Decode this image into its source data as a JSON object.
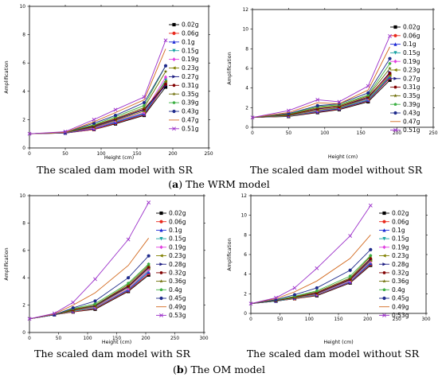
{
  "chart_data": [
    {
      "type": "line",
      "panel": "WRM with SR",
      "caption": "The scaled dam model with SR",
      "xlabel": "Height (cm)",
      "ylabel": "Amplification",
      "xlim": [
        0,
        250
      ],
      "ylim": [
        0,
        10
      ],
      "xticks": [
        0,
        50,
        100,
        150,
        200,
        250
      ],
      "yticks": [
        0,
        2,
        4,
        6,
        8,
        10
      ],
      "x": [
        0,
        50,
        90,
        120,
        160,
        190
      ],
      "series": [
        {
          "name": "0.02g",
          "color": "#000000",
          "marker": "square",
          "values": [
            1,
            1.05,
            1.3,
            1.7,
            2.3,
            4.3
          ]
        },
        {
          "name": "0.06g",
          "color": "#e8291c",
          "marker": "circle",
          "values": [
            1,
            1.05,
            1.3,
            1.75,
            2.35,
            4.5
          ]
        },
        {
          "name": "0.1g",
          "color": "#1f2bd6",
          "marker": "triangle",
          "values": [
            1,
            1.05,
            1.35,
            1.8,
            2.4,
            4.6
          ]
        },
        {
          "name": "0.15g",
          "color": "#1aa3a3",
          "marker": "tri-down",
          "values": [
            1,
            1.08,
            1.4,
            1.85,
            2.45,
            4.8
          ]
        },
        {
          "name": "0.19g",
          "color": "#e040e0",
          "marker": "diamond",
          "values": [
            1,
            1.08,
            1.4,
            1.9,
            2.5,
            5.0
          ]
        },
        {
          "name": "0.23g",
          "color": "#808000",
          "marker": "tri-left",
          "values": [
            1,
            1.08,
            1.45,
            1.95,
            2.6,
            4.7
          ]
        },
        {
          "name": "0.27g",
          "color": "#1a1a80",
          "marker": "tri-right",
          "values": [
            1,
            1.1,
            1.5,
            2.0,
            2.7,
            4.4
          ]
        },
        {
          "name": "0.31g",
          "color": "#800000",
          "marker": "hexagon",
          "values": [
            1,
            1.1,
            1.55,
            2.05,
            2.75,
            4.5
          ]
        },
        {
          "name": "0.35g",
          "color": "#6a6a00",
          "marker": "star",
          "values": [
            1,
            1.1,
            1.6,
            2.1,
            2.85,
            5.4
          ]
        },
        {
          "name": "0.39g",
          "color": "#3cb043",
          "marker": "pentagon",
          "values": [
            1,
            1.1,
            1.65,
            2.2,
            3.0,
            5.8
          ]
        },
        {
          "name": "0.43g",
          "color": "#1f2b8c",
          "marker": "circle",
          "values": [
            1,
            1.1,
            1.75,
            2.3,
            3.2,
            5.8
          ]
        },
        {
          "name": "0.47g",
          "color": "#d2691e",
          "marker": "none",
          "values": [
            1,
            1.1,
            1.85,
            2.5,
            3.4,
            7.0
          ]
        },
        {
          "name": "0.51g",
          "color": "#9b2fc9",
          "marker": "x",
          "values": [
            1,
            1.15,
            2.0,
            2.7,
            3.6,
            7.6
          ]
        }
      ]
    },
    {
      "type": "line",
      "panel": "WRM without SR",
      "caption": "The scaled dam model without SR",
      "xlabel": "Height (cm)",
      "ylabel": "Amplification",
      "xlim": [
        0,
        250
      ],
      "ylim": [
        0,
        12
      ],
      "xticks": [
        0,
        50,
        100,
        150,
        200,
        250
      ],
      "yticks": [
        0,
        2,
        4,
        6,
        8,
        10,
        12
      ],
      "x": [
        0,
        50,
        90,
        120,
        160,
        190
      ],
      "series": [
        {
          "name": "0.02g",
          "color": "#000000",
          "marker": "square",
          "values": [
            1,
            1.1,
            1.5,
            1.8,
            2.6,
            4.8
          ]
        },
        {
          "name": "0.06g",
          "color": "#e8291c",
          "marker": "circle",
          "values": [
            1,
            1.12,
            1.55,
            1.85,
            2.7,
            5.0
          ]
        },
        {
          "name": "0.1g",
          "color": "#1f2bd6",
          "marker": "triangle",
          "values": [
            1,
            1.15,
            1.6,
            1.9,
            2.75,
            5.1
          ]
        },
        {
          "name": "0.15g",
          "color": "#1aa3a3",
          "marker": "tri-down",
          "values": [
            1,
            1.15,
            1.65,
            1.95,
            2.8,
            5.2
          ]
        },
        {
          "name": "0.19g",
          "color": "#e040e0",
          "marker": "diamond",
          "values": [
            1,
            1.2,
            1.7,
            2.0,
            2.9,
            5.4
          ]
        },
        {
          "name": "0.23g",
          "color": "#808000",
          "marker": "tri-left",
          "values": [
            1,
            1.2,
            1.75,
            2.0,
            2.95,
            5.3
          ]
        },
        {
          "name": "0.27g",
          "color": "#1a1a80",
          "marker": "tri-right",
          "values": [
            1,
            1.25,
            1.85,
            2.1,
            3.0,
            5.6
          ]
        },
        {
          "name": "0.31g",
          "color": "#800000",
          "marker": "hexagon",
          "values": [
            1,
            1.25,
            1.9,
            2.1,
            3.1,
            5.5
          ]
        },
        {
          "name": "0.35g",
          "color": "#6a6a00",
          "marker": "star",
          "values": [
            1,
            1.3,
            2.0,
            2.2,
            3.2,
            6.0
          ]
        },
        {
          "name": "0.39g",
          "color": "#3cb043",
          "marker": "pentagon",
          "values": [
            1,
            1.35,
            2.1,
            2.3,
            3.3,
            6.5
          ]
        },
        {
          "name": "0.43g",
          "color": "#1f2b8c",
          "marker": "circle",
          "values": [
            1,
            1.4,
            2.2,
            2.4,
            3.5,
            7.0
          ]
        },
        {
          "name": "0.47g",
          "color": "#d2691e",
          "marker": "none",
          "values": [
            1,
            1.5,
            2.5,
            2.4,
            3.8,
            8.2
          ]
        },
        {
          "name": "0.51g",
          "color": "#9b2fc9",
          "marker": "x",
          "values": [
            1,
            1.7,
            2.8,
            2.6,
            4.2,
            9.3
          ]
        }
      ]
    },
    {
      "type": "line",
      "panel": "OM with SR",
      "caption": "The scaled dam model with SR",
      "xlabel": "Height (cm)",
      "ylabel": "Amplification",
      "xlim": [
        0,
        300
      ],
      "ylim": [
        0,
        10
      ],
      "xticks": [
        0,
        50,
        100,
        150,
        200,
        250,
        300
      ],
      "yticks": [
        0,
        2,
        4,
        6,
        8,
        10
      ],
      "x": [
        0,
        43,
        75,
        113,
        170,
        205
      ],
      "series": [
        {
          "name": "0.02g",
          "color": "#000000",
          "marker": "square",
          "values": [
            1,
            1.3,
            1.5,
            1.7,
            3.0,
            4.2
          ]
        },
        {
          "name": "0.06g",
          "color": "#e8291c",
          "marker": "circle",
          "values": [
            1,
            1.3,
            1.5,
            1.75,
            3.05,
            4.3
          ]
        },
        {
          "name": "0.1g",
          "color": "#1f2bd6",
          "marker": "triangle",
          "values": [
            1,
            1.3,
            1.55,
            1.8,
            3.1,
            4.4
          ]
        },
        {
          "name": "0.15g",
          "color": "#1aa3a3",
          "marker": "tri-down",
          "values": [
            1,
            1.3,
            1.55,
            1.8,
            3.15,
            4.5
          ]
        },
        {
          "name": "0.19g",
          "color": "#e040e0",
          "marker": "diamond",
          "values": [
            1,
            1.3,
            1.6,
            1.85,
            3.2,
            4.6
          ]
        },
        {
          "name": "0.23g",
          "color": "#808000",
          "marker": "tri-left",
          "values": [
            1,
            1.3,
            1.6,
            1.9,
            3.3,
            4.7
          ]
        },
        {
          "name": "0.28g",
          "color": "#1a1a80",
          "marker": "tri-right",
          "values": [
            1,
            1.3,
            1.65,
            1.95,
            3.35,
            4.75
          ]
        },
        {
          "name": "0.32g",
          "color": "#800000",
          "marker": "hexagon",
          "values": [
            1,
            1.3,
            1.65,
            2.0,
            3.4,
            4.8
          ]
        },
        {
          "name": "0.36g",
          "color": "#6a6a00",
          "marker": "star",
          "values": [
            1,
            1.3,
            1.7,
            2.0,
            3.5,
            4.9
          ]
        },
        {
          "name": "0.4g",
          "color": "#3cb043",
          "marker": "pentagon",
          "values": [
            1,
            1.3,
            1.75,
            2.1,
            3.6,
            5.0
          ]
        },
        {
          "name": "0.45g",
          "color": "#1f2b8c",
          "marker": "circle",
          "values": [
            1,
            1.3,
            1.8,
            2.3,
            4.0,
            5.6
          ]
        },
        {
          "name": "0.49g",
          "color": "#d2691e",
          "marker": "none",
          "values": [
            1,
            1.35,
            2.0,
            2.9,
            4.9,
            6.9
          ]
        },
        {
          "name": "0.53g",
          "color": "#9b2fc9",
          "marker": "x",
          "values": [
            1,
            1.4,
            2.2,
            3.9,
            6.8,
            9.5
          ]
        }
      ]
    },
    {
      "type": "line",
      "panel": "OM without SR",
      "caption": "The scaled dam model without SR",
      "xlabel": "Height (cm)",
      "ylabel": "Amplification",
      "xlim": [
        0,
        300
      ],
      "ylim": [
        0,
        12
      ],
      "xticks": [
        0,
        50,
        100,
        150,
        200,
        250,
        300
      ],
      "yticks": [
        0,
        2,
        4,
        6,
        8,
        10,
        12
      ],
      "x": [
        0,
        43,
        75,
        113,
        170,
        205
      ],
      "series": [
        {
          "name": "0.02g",
          "color": "#000000",
          "marker": "square",
          "values": [
            1,
            1.25,
            1.5,
            1.8,
            3.1,
            4.9
          ]
        },
        {
          "name": "0.06g",
          "color": "#e8291c",
          "marker": "circle",
          "values": [
            1,
            1.25,
            1.5,
            1.85,
            3.15,
            5.0
          ]
        },
        {
          "name": "0.1g",
          "color": "#1f2bd6",
          "marker": "triangle",
          "values": [
            1,
            1.25,
            1.55,
            1.9,
            3.2,
            5.1
          ]
        },
        {
          "name": "0.15g",
          "color": "#1aa3a3",
          "marker": "tri-down",
          "values": [
            1,
            1.25,
            1.55,
            1.9,
            3.25,
            5.2
          ]
        },
        {
          "name": "0.19g",
          "color": "#e040e0",
          "marker": "diamond",
          "values": [
            1,
            1.3,
            1.6,
            1.95,
            3.3,
            5.3
          ]
        },
        {
          "name": "0.23g",
          "color": "#808000",
          "marker": "tri-left",
          "values": [
            1,
            1.3,
            1.6,
            2.0,
            3.4,
            5.4
          ]
        },
        {
          "name": "0.28g",
          "color": "#1a1a80",
          "marker": "tri-right",
          "values": [
            1,
            1.3,
            1.65,
            2.05,
            3.45,
            5.5
          ]
        },
        {
          "name": "0.32g",
          "color": "#800000",
          "marker": "hexagon",
          "values": [
            1,
            1.3,
            1.65,
            2.1,
            3.5,
            5.6
          ]
        },
        {
          "name": "0.36g",
          "color": "#6a6a00",
          "marker": "star",
          "values": [
            1,
            1.35,
            1.7,
            2.2,
            3.6,
            5.8
          ]
        },
        {
          "name": "0.4g",
          "color": "#3cb043",
          "marker": "pentagon",
          "values": [
            1,
            1.35,
            1.75,
            2.3,
            3.8,
            5.9
          ]
        },
        {
          "name": "0.45g",
          "color": "#1f2b8c",
          "marker": "circle",
          "values": [
            1,
            1.4,
            1.9,
            2.6,
            4.4,
            6.5
          ]
        },
        {
          "name": "0.49g",
          "color": "#d2691e",
          "marker": "none",
          "values": [
            1,
            1.5,
            2.2,
            3.3,
            5.6,
            8.0
          ]
        },
        {
          "name": "0.53g",
          "color": "#9b2fc9",
          "marker": "x",
          "values": [
            1,
            1.6,
            2.6,
            4.6,
            7.9,
            11.0
          ]
        }
      ]
    }
  ],
  "captions": {
    "row1_label": "a",
    "row1_text": " The WRM model",
    "row2_label": "b",
    "row2_text": " The OM model"
  }
}
